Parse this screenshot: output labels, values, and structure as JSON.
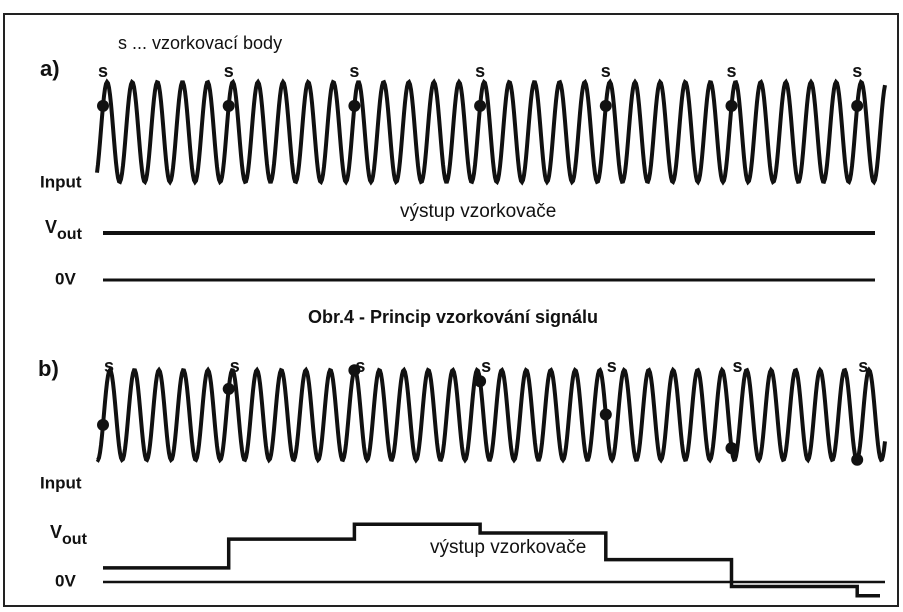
{
  "legend": "s ... vzorkovací body",
  "caption": "Obr.4 - Princip vzorkování signálu",
  "panel_a": {
    "label": "a)",
    "samples": [
      "s",
      "s",
      "s",
      "s",
      "s",
      "s",
      "s"
    ],
    "input": "Input",
    "output_label": "výstup vzorkovače",
    "vout": {
      "main": "V",
      "sub": "out"
    },
    "zero": "0V"
  },
  "panel_b": {
    "label": "b)",
    "samples": [
      "s",
      "s",
      "s",
      "s",
      "s",
      "s",
      "s"
    ],
    "input": "Input",
    "output_label": "výstup vzorkovače",
    "vout": {
      "main": "V",
      "sub": "out"
    },
    "zero": "0V"
  }
}
